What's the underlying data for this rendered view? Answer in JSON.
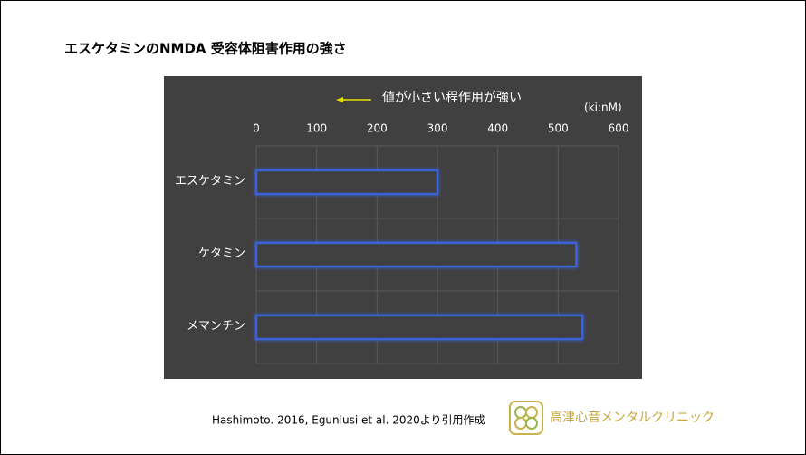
{
  "chart_data": {
    "type": "bar",
    "orientation": "horizontal",
    "title": "エスケタミンのNMDA 受容体阻害作用の強さ",
    "annotation": "値が小さい程作用が強い",
    "unit_label": "(ki:nM)",
    "categories": [
      "エスケタミン",
      "ケタミン",
      "メマンチン"
    ],
    "values": [
      300,
      530,
      540
    ],
    "color": "#3b63d6",
    "xlim": [
      0,
      600
    ],
    "xticks": [
      0,
      100,
      200,
      300,
      400,
      500,
      600
    ],
    "grid": true
  },
  "source": "Hashimoto. 2016,  Egunlusi et al. 2020より引用作成",
  "logo_text": "高津心音メンタルクリニック"
}
